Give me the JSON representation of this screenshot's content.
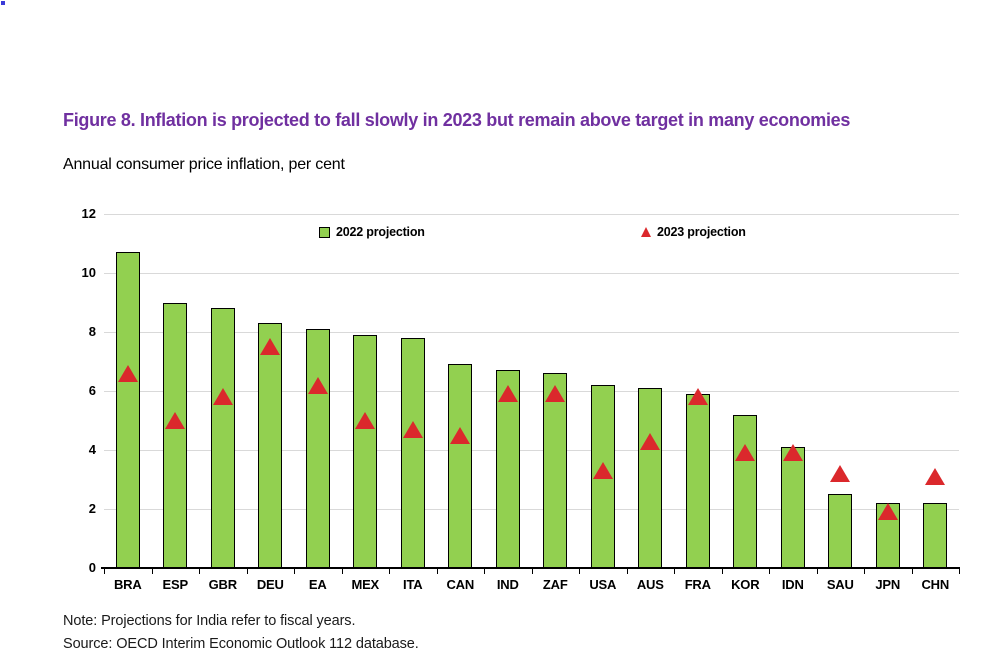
{
  "chart_data": {
    "type": "bar",
    "title": "Figure 8. Inflation is projected to fall slowly in 2023 but remain above target in many economies",
    "title_color": "#7030A0",
    "subtitle": "Annual consumer price inflation, per cent",
    "xlabel": "",
    "ylabel": "",
    "categories": [
      "BRA",
      "ESP",
      "GBR",
      "DEU",
      "EA",
      "MEX",
      "ITA",
      "CAN",
      "IND",
      "ZAF",
      "USA",
      "AUS",
      "FRA",
      "KOR",
      "IDN",
      "SAU",
      "JPN",
      "CHN"
    ],
    "series": [
      {
        "name": "2022 projection",
        "marker": "square",
        "color": "#92D050",
        "values": [
          10.7,
          9.0,
          8.8,
          8.3,
          8.1,
          7.9,
          7.8,
          6.9,
          6.7,
          6.6,
          6.2,
          6.1,
          5.9,
          5.2,
          4.1,
          2.5,
          2.2,
          2.2
        ]
      },
      {
        "name": "2023 projection",
        "marker": "triangle",
        "color": "#DB282C",
        "values": [
          6.6,
          5.0,
          5.8,
          7.5,
          6.2,
          5.0,
          4.7,
          4.5,
          5.9,
          5.9,
          3.3,
          4.3,
          5.8,
          3.9,
          3.9,
          3.2,
          1.9,
          3.1
        ]
      }
    ],
    "ylim": [
      0,
      12
    ],
    "yticks": [
      0,
      2,
      4,
      6,
      8,
      10,
      12
    ],
    "grid": "horizontal",
    "gridline_color": "#D9D9D9",
    "legend_position": "top-inside",
    "note": "Note: Projections for India refer to fiscal years.",
    "source": "Source: OECD Interim Economic Outlook 112 database."
  }
}
